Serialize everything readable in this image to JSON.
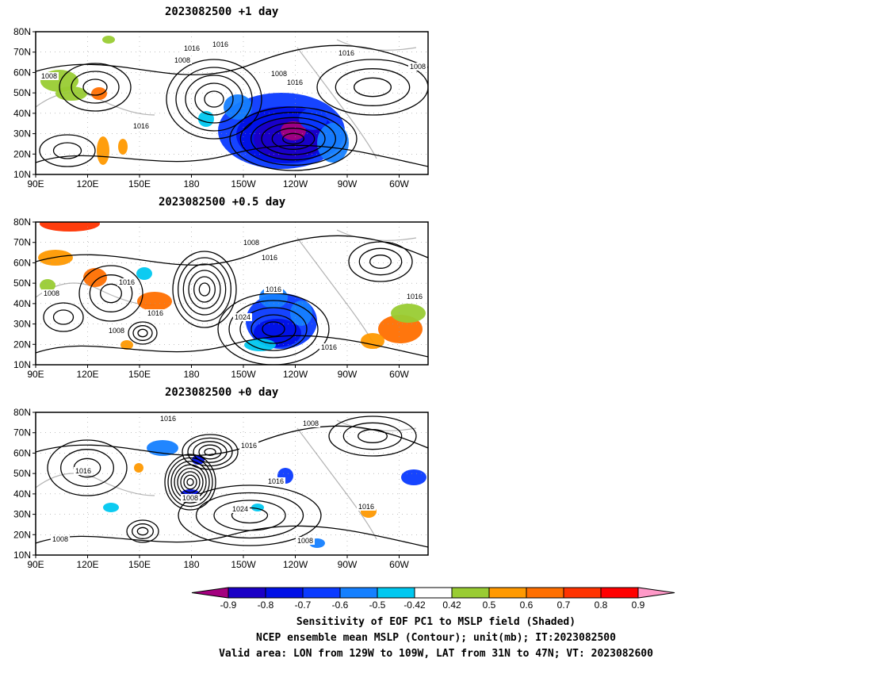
{
  "panels": [
    {
      "title": "2023082500 +1 day",
      "contour_labels": [
        "1008",
        "1016",
        "1016",
        "1008",
        "1016",
        "1008",
        "1016",
        "1016",
        "1008"
      ]
    },
    {
      "title": "2023082500 +0.5 day",
      "contour_labels": [
        "1008",
        "1016",
        "1016",
        "1008",
        "1016",
        "1016",
        "1024",
        "1008",
        "1016",
        "1016"
      ]
    },
    {
      "title": "2023082500 +0 day",
      "contour_labels": [
        "1016",
        "1008",
        "1016",
        "1016",
        "1016",
        "1008",
        "1024",
        "1016",
        "1008",
        "1008"
      ]
    }
  ],
  "axes": {
    "lat_labels": [
      "80N",
      "70N",
      "60N",
      "50N",
      "40N",
      "30N",
      "20N",
      "10N"
    ],
    "lon_labels": [
      "90E",
      "120E",
      "150E",
      "180",
      "150W",
      "120W",
      "90W",
      "60W"
    ]
  },
  "colorbar": {
    "ticks": [
      "-0.9",
      "-0.8",
      "-0.7",
      "-0.6",
      "-0.5",
      "-0.42",
      "0.42",
      "0.5",
      "0.6",
      "0.7",
      "0.8",
      "0.9"
    ],
    "colors": [
      "#a4007f",
      "#1a00c6",
      "#0010e6",
      "#0a3aff",
      "#1580ff",
      "#00c8f0",
      "#ffffff",
      "#99cc33",
      "#ff9900",
      "#ff6f00",
      "#ff3300",
      "#ff0000",
      "#ff99c8"
    ]
  },
  "caption": {
    "line1": "Sensitivity of EOF PC1 to MSLP field (Shaded)",
    "line2": "NCEP ensemble mean MSLP (Contour); unit(mb); IT:2023082500",
    "line3": "Valid area: LON from 129W to 109W, LAT from 31N to 47N; VT: 2023082600"
  }
}
